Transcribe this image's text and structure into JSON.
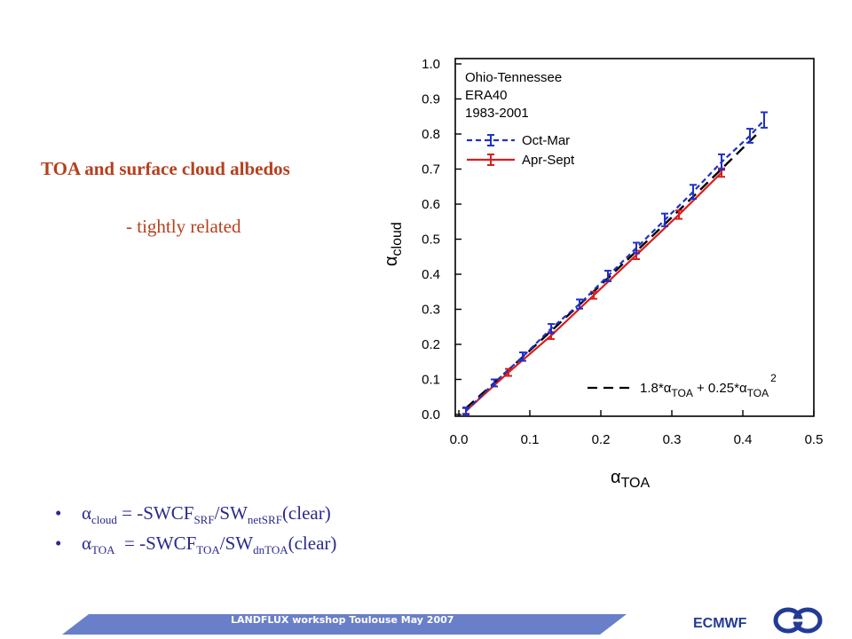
{
  "slide": {
    "title": "TOA and surface cloud albedos",
    "subtitle": "- tightly related",
    "bullets": [
      {
        "sym": "α",
        "sub1": "cloud",
        "mid": " = -SWCF",
        "sub2": "SRF",
        "mid2": "/SW",
        "sub3": "netSRF",
        "end": "(clear)"
      },
      {
        "sym": "α",
        "sub1": "TOA",
        "mid": "  = -SWCF",
        "sub2": "TOA",
        "mid2": "/SW",
        "sub3": "dnTOA",
        "end": "(clear)"
      }
    ],
    "bullet_glyph": "•"
  },
  "footer": {
    "workshop": "LANDFLUX workshop Toulouse May 2007",
    "org": "ECMWF",
    "bar_color": "#6a7fc9",
    "org_color": "#223b96"
  },
  "chart_data": {
    "type": "line",
    "annotation": [
      "Ohio-Tennessee",
      "ERA40",
      "1983-2001"
    ],
    "xlabel": "α",
    "xlabel_sub": "TOA",
    "ylabel": "α",
    "ylabel_sub": "cloud",
    "xlim": [
      0.0,
      0.5
    ],
    "ylim": [
      0.0,
      1.0
    ],
    "xticks": [
      "0.0",
      "0.1",
      "0.2",
      "0.3",
      "0.4",
      "0.5"
    ],
    "yticks": [
      "0.0",
      "0.1",
      "0.2",
      "0.3",
      "0.4",
      "0.5",
      "0.6",
      "0.7",
      "0.8",
      "0.9",
      "1.0"
    ],
    "legend_position": "top-left",
    "series": [
      {
        "name": "Oct-Mar",
        "color": "#2030c8",
        "style": "dashed",
        "x": [
          0.01,
          0.05,
          0.09,
          0.13,
          0.17,
          0.21,
          0.25,
          0.29,
          0.33,
          0.37,
          0.41,
          0.43
        ],
        "y": [
          0.01,
          0.09,
          0.165,
          0.245,
          0.315,
          0.395,
          0.475,
          0.555,
          0.635,
          0.72,
          0.795,
          0.84
        ],
        "err": [
          0.01,
          0.01,
          0.012,
          0.013,
          0.013,
          0.015,
          0.015,
          0.018,
          0.02,
          0.022,
          0.02,
          0.022
        ]
      },
      {
        "name": "Apr-Sept",
        "color": "#d81e1e",
        "style": "solid",
        "x": [
          0.01,
          0.07,
          0.13,
          0.19,
          0.25,
          0.31,
          0.37
        ],
        "y": [
          0.01,
          0.12,
          0.225,
          0.34,
          0.455,
          0.57,
          0.69
        ],
        "err": [
          0.008,
          0.01,
          0.01,
          0.01,
          0.012,
          0.012,
          0.012
        ]
      },
      {
        "name": "1.8*αTOA + 0.25*αTOA²",
        "color": "#000000",
        "style": "long-dash",
        "formula": {
          "a": 1.8,
          "b": 0.25
        },
        "x_range": [
          0.01,
          0.42
        ]
      }
    ],
    "fit_label": {
      "p1": "1.8*α",
      "s1": "TOA",
      "p2": " + 0.25*α",
      "s2": "TOA",
      "sup": "2"
    }
  }
}
